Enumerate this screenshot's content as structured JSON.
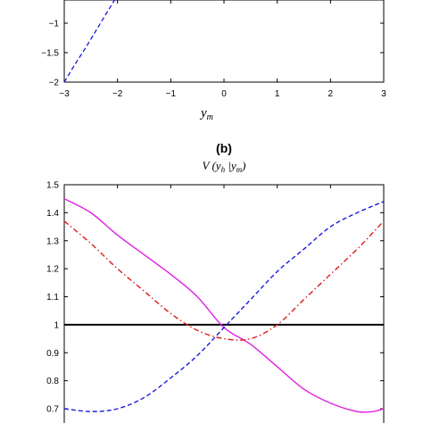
{
  "chart_data": [
    {
      "type": "line",
      "panel": "top",
      "xlabel": "y_m",
      "xlabel_display": "y",
      "xlabel_sub": "m",
      "xlim": [
        -3,
        3
      ],
      "ylim_visible": [
        -2,
        -0.3
      ],
      "xticks": [
        "−3",
        "−2",
        "−1",
        "0",
        "1",
        "2",
        "3"
      ],
      "yticks": [
        "−1",
        "−1.5",
        "−2"
      ],
      "series": [
        {
          "style": "dashed",
          "color": "#1a1adb",
          "x": [
            -3.0,
            -2.8,
            -2.6,
            -2.4,
            -2.2,
            -2.05
          ],
          "y": [
            -2.0,
            -1.7,
            -1.42,
            -1.12,
            -0.82,
            -0.6
          ]
        }
      ]
    },
    {
      "type": "line",
      "panel": "b",
      "panel_label": "(b)",
      "title": "V (y_h |y_m)",
      "xlim": [
        -3,
        3
      ],
      "ylim": [
        0.65,
        1.5
      ],
      "yticks": [
        "1.5",
        "1.4",
        "1.3",
        "1.2",
        "1.1",
        "1",
        "0.9",
        "0.8",
        "0.7"
      ],
      "ytick_values": [
        1.5,
        1.4,
        1.3,
        1.2,
        1.1,
        1.0,
        0.9,
        0.8,
        0.7
      ],
      "grid": false,
      "series": [
        {
          "style": "solid",
          "color": "#000000",
          "x": [
            -3,
            3
          ],
          "y": [
            1.0,
            1.0
          ]
        },
        {
          "style": "solid",
          "color": "#e020e0",
          "x": [
            -3,
            -2.5,
            -2,
            -1.5,
            -1,
            -0.5,
            0,
            0.5,
            1,
            1.5,
            2,
            2.5,
            2.8,
            3
          ],
          "y": [
            1.45,
            1.4,
            1.32,
            1.25,
            1.18,
            1.1,
            0.99,
            0.93,
            0.85,
            0.77,
            0.72,
            0.69,
            0.69,
            0.7
          ]
        },
        {
          "style": "dashed",
          "color": "#1a1adb",
          "x": [
            -3,
            -2.5,
            -2,
            -1.5,
            -1,
            -0.5,
            0,
            0.5,
            1,
            1.5,
            2,
            2.5,
            3
          ],
          "y": [
            0.7,
            0.69,
            0.7,
            0.74,
            0.81,
            0.89,
            0.99,
            1.09,
            1.19,
            1.27,
            1.35,
            1.4,
            1.44
          ]
        },
        {
          "style": "dashdot",
          "color": "#d81c1c",
          "x": [
            -3,
            -2.5,
            -2,
            -1.5,
            -1,
            -0.5,
            0,
            0.5,
            1,
            1.5,
            2,
            2.5,
            3
          ],
          "y": [
            1.37,
            1.29,
            1.2,
            1.12,
            1.04,
            0.98,
            0.95,
            0.95,
            1.0,
            1.09,
            1.18,
            1.27,
            1.37
          ]
        }
      ]
    }
  ]
}
